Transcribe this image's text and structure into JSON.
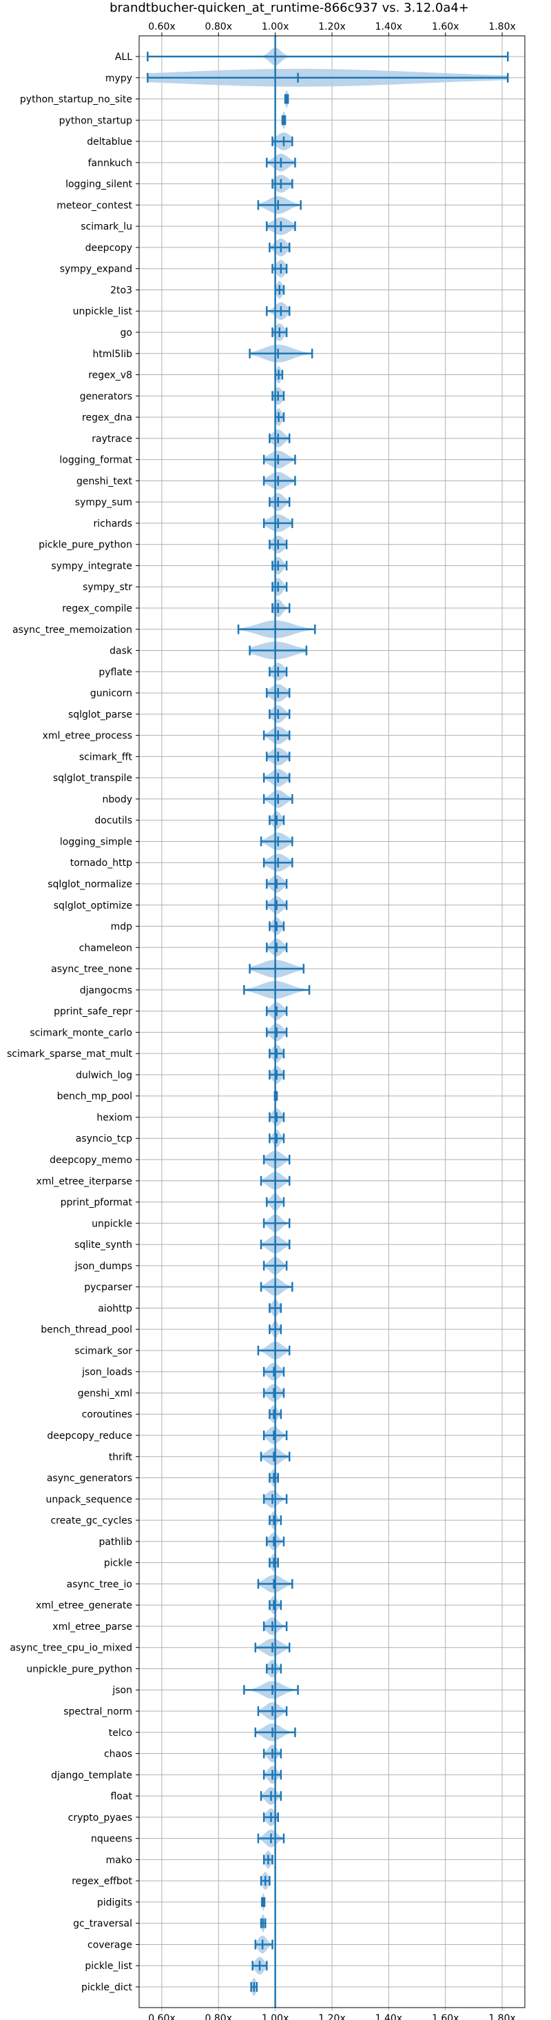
{
  "chart_data": {
    "type": "violin",
    "title": "brandtbucher-quicken_at_runtime-866c937 vs. 3.12.0a4+",
    "xlim": [
      0.52,
      1.88
    ],
    "xticks": [
      0.6,
      0.8,
      1.0,
      1.2,
      1.4,
      1.6,
      1.8
    ],
    "xtick_labels": [
      "0.60x",
      "0.80x",
      "1.00x",
      "1.20x",
      "1.40x",
      "1.60x",
      "1.80x"
    ],
    "ticks_position": "top",
    "grid": true,
    "reference_line": 1.0,
    "colors": {
      "violin": "#aecde8",
      "line": "#1f77b4"
    },
    "benchmarks": [
      {
        "name": "ALL",
        "min": 0.55,
        "max": 1.82,
        "median": 1.0,
        "spread": 0.02
      },
      {
        "name": "mypy",
        "min": 0.55,
        "max": 1.82,
        "median": 1.08,
        "spread": 0.45
      },
      {
        "name": "python_startup_no_site",
        "min": 1.035,
        "max": 1.045,
        "median": 1.04,
        "spread": 0.005
      },
      {
        "name": "python_startup",
        "min": 1.025,
        "max": 1.035,
        "median": 1.03,
        "spread": 0.005
      },
      {
        "name": "deltablue",
        "min": 0.99,
        "max": 1.06,
        "median": 1.03,
        "spread": 0.025
      },
      {
        "name": "fannkuch",
        "min": 0.97,
        "max": 1.07,
        "median": 1.02,
        "spread": 0.025
      },
      {
        "name": "logging_silent",
        "min": 0.99,
        "max": 1.06,
        "median": 1.02,
        "spread": 0.025
      },
      {
        "name": "meteor_contest",
        "min": 0.94,
        "max": 1.09,
        "median": 1.01,
        "spread": 0.035
      },
      {
        "name": "scimark_lu",
        "min": 0.97,
        "max": 1.07,
        "median": 1.02,
        "spread": 0.03
      },
      {
        "name": "deepcopy",
        "min": 0.98,
        "max": 1.05,
        "median": 1.02,
        "spread": 0.02
      },
      {
        "name": "sympy_expand",
        "min": 0.99,
        "max": 1.04,
        "median": 1.02,
        "spread": 0.015
      },
      {
        "name": "2to3",
        "min": 1.0,
        "max": 1.03,
        "median": 1.015,
        "spread": 0.01
      },
      {
        "name": "unpickle_list",
        "min": 0.97,
        "max": 1.05,
        "median": 1.02,
        "spread": 0.02
      },
      {
        "name": "go",
        "min": 0.99,
        "max": 1.04,
        "median": 1.015,
        "spread": 0.015
      },
      {
        "name": "html5lib",
        "min": 0.91,
        "max": 1.13,
        "median": 1.01,
        "spread": 0.05
      },
      {
        "name": "regex_v8",
        "min": 1.0,
        "max": 1.025,
        "median": 1.012,
        "spread": 0.008
      },
      {
        "name": "generators",
        "min": 0.99,
        "max": 1.03,
        "median": 1.01,
        "spread": 0.015
      },
      {
        "name": "regex_dna",
        "min": 1.0,
        "max": 1.03,
        "median": 1.012,
        "spread": 0.01
      },
      {
        "name": "raytrace",
        "min": 0.98,
        "max": 1.05,
        "median": 1.01,
        "spread": 0.02
      },
      {
        "name": "logging_format",
        "min": 0.96,
        "max": 1.07,
        "median": 1.01,
        "spread": 0.03
      },
      {
        "name": "genshi_text",
        "min": 0.96,
        "max": 1.07,
        "median": 1.01,
        "spread": 0.03
      },
      {
        "name": "sympy_sum",
        "min": 0.98,
        "max": 1.05,
        "median": 1.01,
        "spread": 0.02
      },
      {
        "name": "richards",
        "min": 0.96,
        "max": 1.06,
        "median": 1.01,
        "spread": 0.03
      },
      {
        "name": "pickle_pure_python",
        "min": 0.98,
        "max": 1.04,
        "median": 1.01,
        "spread": 0.02
      },
      {
        "name": "sympy_integrate",
        "min": 0.99,
        "max": 1.04,
        "median": 1.01,
        "spread": 0.015
      },
      {
        "name": "sympy_str",
        "min": 0.99,
        "max": 1.04,
        "median": 1.01,
        "spread": 0.015
      },
      {
        "name": "regex_compile",
        "min": 0.99,
        "max": 1.05,
        "median": 1.01,
        "spread": 0.015
      },
      {
        "name": "async_tree_memoization",
        "min": 0.87,
        "max": 1.14,
        "median": 1.0,
        "spread": 0.06
      },
      {
        "name": "dask",
        "min": 0.91,
        "max": 1.11,
        "median": 1.0,
        "spread": 0.06
      },
      {
        "name": "pyflate",
        "min": 0.98,
        "max": 1.04,
        "median": 1.01,
        "spread": 0.02
      },
      {
        "name": "gunicorn",
        "min": 0.97,
        "max": 1.05,
        "median": 1.01,
        "spread": 0.025
      },
      {
        "name": "sqlglot_parse",
        "min": 0.98,
        "max": 1.05,
        "median": 1.01,
        "spread": 0.02
      },
      {
        "name": "xml_etree_process",
        "min": 0.96,
        "max": 1.05,
        "median": 1.01,
        "spread": 0.025
      },
      {
        "name": "scimark_fft",
        "min": 0.97,
        "max": 1.05,
        "median": 1.01,
        "spread": 0.025
      },
      {
        "name": "sqlglot_transpile",
        "min": 0.96,
        "max": 1.05,
        "median": 1.01,
        "spread": 0.025
      },
      {
        "name": "nbody",
        "min": 0.96,
        "max": 1.06,
        "median": 1.01,
        "spread": 0.025
      },
      {
        "name": "docutils",
        "min": 0.98,
        "max": 1.03,
        "median": 1.005,
        "spread": 0.015
      },
      {
        "name": "logging_simple",
        "min": 0.95,
        "max": 1.06,
        "median": 1.01,
        "spread": 0.03
      },
      {
        "name": "tornado_http",
        "min": 0.96,
        "max": 1.06,
        "median": 1.01,
        "spread": 0.03
      },
      {
        "name": "sqlglot_normalize",
        "min": 0.97,
        "max": 1.04,
        "median": 1.005,
        "spread": 0.02
      },
      {
        "name": "sqlglot_optimize",
        "min": 0.97,
        "max": 1.04,
        "median": 1.005,
        "spread": 0.02
      },
      {
        "name": "mdp",
        "min": 0.98,
        "max": 1.03,
        "median": 1.005,
        "spread": 0.015
      },
      {
        "name": "chameleon",
        "min": 0.97,
        "max": 1.04,
        "median": 1.005,
        "spread": 0.02
      },
      {
        "name": "async_tree_none",
        "min": 0.91,
        "max": 1.1,
        "median": 1.0,
        "spread": 0.05
      },
      {
        "name": "djangocms",
        "min": 0.89,
        "max": 1.12,
        "median": 1.0,
        "spread": 0.05
      },
      {
        "name": "pprint_safe_repr",
        "min": 0.97,
        "max": 1.04,
        "median": 1.005,
        "spread": 0.02
      },
      {
        "name": "scimark_monte_carlo",
        "min": 0.97,
        "max": 1.04,
        "median": 1.005,
        "spread": 0.02
      },
      {
        "name": "scimark_sparse_mat_mult",
        "min": 0.98,
        "max": 1.03,
        "median": 1.005,
        "spread": 0.015
      },
      {
        "name": "dulwich_log",
        "min": 0.98,
        "max": 1.03,
        "median": 1.005,
        "spread": 0.015
      },
      {
        "name": "bench_mp_pool",
        "min": 0.998,
        "max": 1.006,
        "median": 1.002,
        "spread": 0.002
      },
      {
        "name": "hexiom",
        "min": 0.98,
        "max": 1.03,
        "median": 1.005,
        "spread": 0.015
      },
      {
        "name": "asyncio_tcp",
        "min": 0.98,
        "max": 1.03,
        "median": 1.005,
        "spread": 0.012
      },
      {
        "name": "deepcopy_memo",
        "min": 0.96,
        "max": 1.05,
        "median": 1.0,
        "spread": 0.025
      },
      {
        "name": "xml_etree_iterparse",
        "min": 0.95,
        "max": 1.05,
        "median": 1.0,
        "spread": 0.025
      },
      {
        "name": "pprint_pformat",
        "min": 0.97,
        "max": 1.03,
        "median": 1.0,
        "spread": 0.015
      },
      {
        "name": "unpickle",
        "min": 0.96,
        "max": 1.05,
        "median": 1.0,
        "spread": 0.02
      },
      {
        "name": "sqlite_synth",
        "min": 0.95,
        "max": 1.05,
        "median": 1.0,
        "spread": 0.025
      },
      {
        "name": "json_dumps",
        "min": 0.96,
        "max": 1.04,
        "median": 1.0,
        "spread": 0.02
      },
      {
        "name": "pycparser",
        "min": 0.95,
        "max": 1.06,
        "median": 1.0,
        "spread": 0.025
      },
      {
        "name": "aiohttp",
        "min": 0.98,
        "max": 1.02,
        "median": 1.0,
        "spread": 0.012
      },
      {
        "name": "bench_thread_pool",
        "min": 0.98,
        "max": 1.02,
        "median": 1.0,
        "spread": 0.01
      },
      {
        "name": "scimark_sor",
        "min": 0.94,
        "max": 1.05,
        "median": 1.0,
        "spread": 0.025
      },
      {
        "name": "json_loads",
        "min": 0.96,
        "max": 1.03,
        "median": 0.995,
        "spread": 0.02
      },
      {
        "name": "genshi_xml",
        "min": 0.96,
        "max": 1.03,
        "median": 0.995,
        "spread": 0.02
      },
      {
        "name": "coroutines",
        "min": 0.98,
        "max": 1.02,
        "median": 0.995,
        "spread": 0.012
      },
      {
        "name": "deepcopy_reduce",
        "min": 0.96,
        "max": 1.04,
        "median": 0.995,
        "spread": 0.02
      },
      {
        "name": "thrift",
        "min": 0.95,
        "max": 1.05,
        "median": 0.995,
        "spread": 0.025
      },
      {
        "name": "async_generators",
        "min": 0.98,
        "max": 1.01,
        "median": 0.995,
        "spread": 0.01
      },
      {
        "name": "unpack_sequence",
        "min": 0.96,
        "max": 1.04,
        "median": 0.99,
        "spread": 0.02
      },
      {
        "name": "create_gc_cycles",
        "min": 0.98,
        "max": 1.02,
        "median": 0.995,
        "spread": 0.01
      },
      {
        "name": "pathlib",
        "min": 0.97,
        "max": 1.03,
        "median": 0.995,
        "spread": 0.015
      },
      {
        "name": "pickle",
        "min": 0.98,
        "max": 1.01,
        "median": 0.995,
        "spread": 0.01
      },
      {
        "name": "async_tree_io",
        "min": 0.94,
        "max": 1.06,
        "median": 0.995,
        "spread": 0.03
      },
      {
        "name": "xml_etree_generate",
        "min": 0.98,
        "max": 1.02,
        "median": 0.995,
        "spread": 0.012
      },
      {
        "name": "xml_etree_parse",
        "min": 0.96,
        "max": 1.04,
        "median": 0.99,
        "spread": 0.02
      },
      {
        "name": "async_tree_cpu_io_mixed",
        "min": 0.93,
        "max": 1.05,
        "median": 0.99,
        "spread": 0.03
      },
      {
        "name": "unpickle_pure_python",
        "min": 0.97,
        "max": 1.02,
        "median": 0.99,
        "spread": 0.015
      },
      {
        "name": "json",
        "min": 0.89,
        "max": 1.08,
        "median": 0.99,
        "spread": 0.035
      },
      {
        "name": "spectral_norm",
        "min": 0.94,
        "max": 1.04,
        "median": 0.99,
        "spread": 0.025
      },
      {
        "name": "telco",
        "min": 0.93,
        "max": 1.07,
        "median": 0.99,
        "spread": 0.03
      },
      {
        "name": "chaos",
        "min": 0.96,
        "max": 1.02,
        "median": 0.99,
        "spread": 0.015
      },
      {
        "name": "django_template",
        "min": 0.96,
        "max": 1.02,
        "median": 0.99,
        "spread": 0.015
      },
      {
        "name": "float",
        "min": 0.95,
        "max": 1.02,
        "median": 0.985,
        "spread": 0.018
      },
      {
        "name": "crypto_pyaes",
        "min": 0.96,
        "max": 1.01,
        "median": 0.985,
        "spread": 0.015
      },
      {
        "name": "nqueens",
        "min": 0.94,
        "max": 1.03,
        "median": 0.985,
        "spread": 0.02
      },
      {
        "name": "mako",
        "min": 0.96,
        "max": 0.99,
        "median": 0.975,
        "spread": 0.01
      },
      {
        "name": "regex_effbot",
        "min": 0.95,
        "max": 0.98,
        "median": 0.965,
        "spread": 0.01
      },
      {
        "name": "pidigits",
        "min": 0.953,
        "max": 0.962,
        "median": 0.958,
        "spread": 0.004
      },
      {
        "name": "gc_traversal",
        "min": 0.95,
        "max": 0.965,
        "median": 0.957,
        "spread": 0.006
      },
      {
        "name": "coverage",
        "min": 0.93,
        "max": 0.99,
        "median": 0.955,
        "spread": 0.015
      },
      {
        "name": "pickle_list",
        "min": 0.92,
        "max": 0.97,
        "median": 0.945,
        "spread": 0.015
      },
      {
        "name": "pickle_dict",
        "min": 0.915,
        "max": 0.935,
        "median": 0.925,
        "spread": 0.008
      }
    ]
  }
}
